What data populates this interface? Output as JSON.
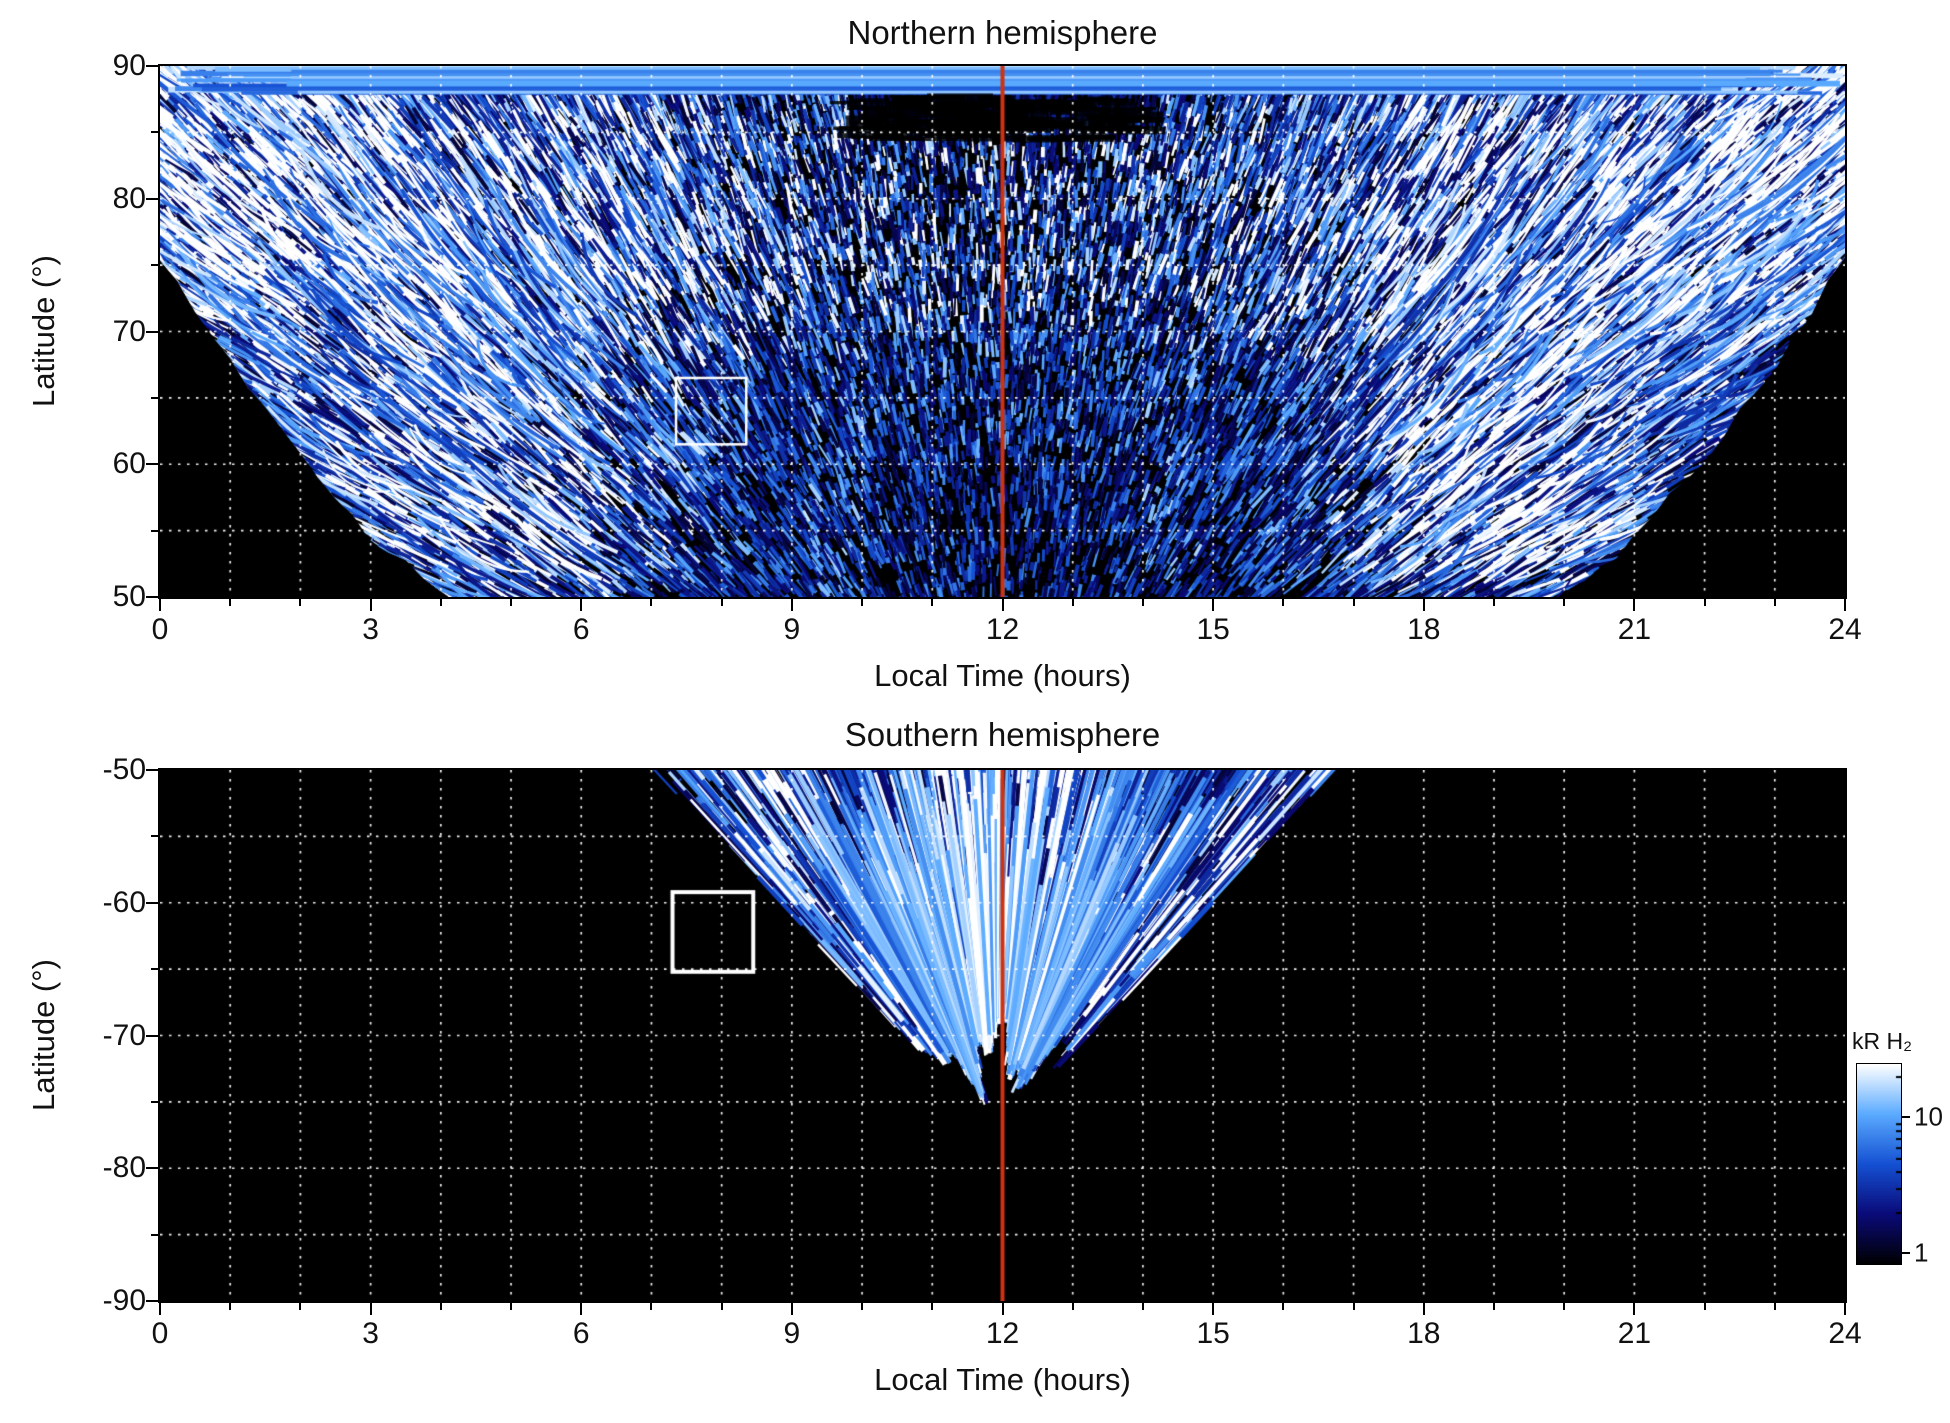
{
  "figure": {
    "background": "#ffffff",
    "panel_background": "#000000",
    "grid_color": "#ffffff",
    "noon_line_color": "#cc3312",
    "box_color": "#ffffff"
  },
  "north": {
    "title": "Northern hemisphere",
    "xlabel": "Local Time (hours)",
    "ylabel": "Latitude (°)",
    "xticks": [
      "0",
      "3",
      "6",
      "9",
      "12",
      "15",
      "18",
      "21",
      "24"
    ],
    "yticks": [
      "90",
      "80",
      "70",
      "60",
      "50"
    ]
  },
  "south": {
    "title": "Southern hemisphere",
    "xlabel": "Local Time (hours)",
    "ylabel": "Latitude (°)",
    "xticks": [
      "0",
      "3",
      "6",
      "9",
      "12",
      "15",
      "18",
      "21",
      "24"
    ],
    "yticks": [
      "-50",
      "-60",
      "-70",
      "-80",
      "-90"
    ]
  },
  "colorbar": {
    "label": "kR H₂",
    "ticks": [
      "10",
      "1"
    ]
  },
  "chart_data": [
    {
      "type": "heatmap",
      "panel": "north",
      "title": "Northern hemisphere",
      "xlabel": "Local Time (hours)",
      "ylabel": "Latitude (°)",
      "xlim": [
        0,
        24
      ],
      "ylim": [
        50,
        90
      ],
      "xticks": [
        0,
        3,
        6,
        9,
        12,
        15,
        18,
        21,
        24
      ],
      "yticks": [
        90,
        80,
        70,
        60,
        50
      ],
      "grid": {
        "style": "dotted",
        "color": "#ffffff",
        "x_step_hours": 1,
        "y_step_deg": 5
      },
      "quantity": "H2 auroral emission brightness (kR H₂), log colour scale black→blue→white",
      "annotations": [
        {
          "type": "vline",
          "x": 12,
          "color": "#cc3312",
          "label": "noon meridian"
        },
        {
          "type": "rect",
          "x0": 7.35,
          "x1": 8.35,
          "y0": 61.5,
          "y1": 66.5,
          "color": "#ffffff",
          "lw": 2.5
        }
      ],
      "coverage_summary": "Speckled blue/white emission fills a bowl-shaped region: down to ~50° between ~05 and ~19 LT, only above ~75° near 00 and 24 LT; bright streaked arcs on the dawn and dusk flanks; bright banded emission near 88–90°; uncovered corners are black."
    },
    {
      "type": "heatmap",
      "panel": "south",
      "title": "Southern hemisphere",
      "xlabel": "Local Time (hours)",
      "ylabel": "Latitude (°)",
      "xlim": [
        0,
        24
      ],
      "ylim": [
        -90,
        -50
      ],
      "xticks": [
        0,
        3,
        6,
        9,
        12,
        15,
        18,
        21,
        24
      ],
      "yticks": [
        -50,
        -60,
        -70,
        -80,
        -90
      ],
      "grid": {
        "style": "dotted",
        "color": "#ffffff",
        "x_step_hours": 1,
        "y_step_deg": 5
      },
      "quantity": "H2 auroral emission brightness (kR H₂), log colour scale black→blue→white",
      "annotations": [
        {
          "type": "vline",
          "x": 12,
          "color": "#cc3312",
          "label": "noon meridian"
        },
        {
          "type": "rect",
          "x0": 7.3,
          "x1": 8.45,
          "y0": -65.2,
          "y1": -59.2,
          "color": "#ffffff",
          "lw": 4
        }
      ],
      "coverage_summary": "Fan-shaped patch of radially streaked blue/white emission centred on ~12 LT, spanning ~07–16.5 LT at −50° and narrowing toward ~−72°; the rest of the panel is black (no data)."
    },
    {
      "type": "colorbar",
      "label": "kR H₂",
      "scale": "log",
      "tick_values": [
        10,
        1
      ],
      "range_approx": [
        0.85,
        25
      ],
      "colormap": "black (≲1) → dark blue → blue → light blue → white (≳20)"
    }
  ]
}
